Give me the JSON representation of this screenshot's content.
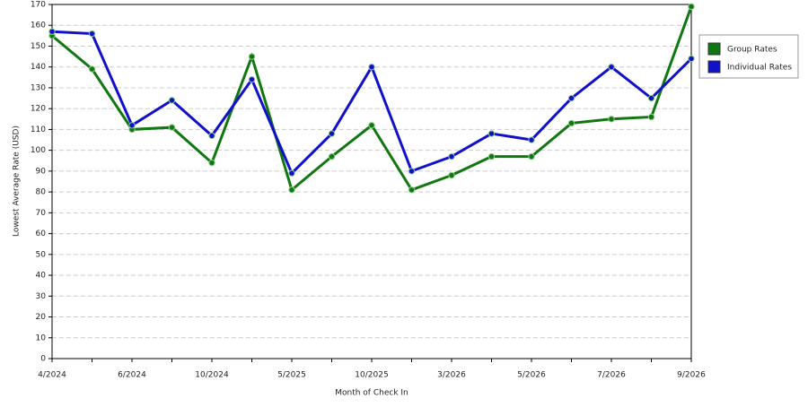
{
  "chart_data": {
    "type": "line",
    "x_label": "Month of Check In",
    "y_label": "Lowest Average Rate (USD)",
    "categories": [
      "4/2024",
      null,
      "6/2024",
      null,
      "10/2024",
      null,
      "5/2025",
      null,
      "10/2025",
      null,
      "3/2026",
      null,
      "5/2026",
      null,
      "7/2026",
      null,
      "9/2026"
    ],
    "series": [
      {
        "name": "Group Rates",
        "color": "#117711",
        "values": [
          155,
          139,
          110,
          111,
          94,
          145,
          81,
          97,
          112,
          81,
          88,
          97,
          97,
          113,
          115,
          116,
          169
        ]
      },
      {
        "name": "Individual Rates",
        "color": "#1111cc",
        "values": [
          157,
          156,
          112,
          124,
          107,
          134,
          89,
          108,
          140,
          90,
          97,
          108,
          105,
          125,
          140,
          125,
          144
        ]
      }
    ],
    "ylim": [
      0,
      170
    ],
    "yticks": [
      0,
      10,
      20,
      30,
      40,
      50,
      60,
      70,
      80,
      90,
      100,
      110,
      120,
      130,
      140,
      150,
      160,
      170
    ],
    "grid": true,
    "legend": "right"
  }
}
